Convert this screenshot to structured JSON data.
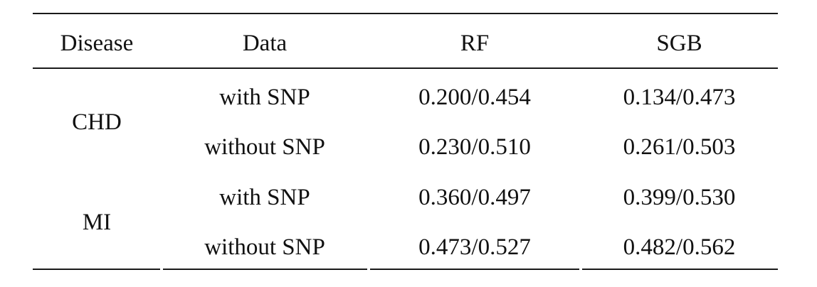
{
  "table": {
    "headers": {
      "disease": "Disease",
      "data": "Data",
      "rf": "RF",
      "sgb": "SGB"
    },
    "groups": [
      {
        "disease": "CHD",
        "rows": [
          {
            "data": "with SNP",
            "rf": "0.200/0.454",
            "sgb": "0.134/0.473"
          },
          {
            "data": "without SNP",
            "rf": "0.230/0.510",
            "sgb": "0.261/0.503"
          }
        ]
      },
      {
        "disease": "MI",
        "rows": [
          {
            "data": "with SNP",
            "rf": "0.360/0.497",
            "sgb": "0.399/0.530"
          },
          {
            "data": "without SNP",
            "rf": "0.473/0.527",
            "sgb": "0.482/0.562"
          }
        ]
      }
    ]
  }
}
